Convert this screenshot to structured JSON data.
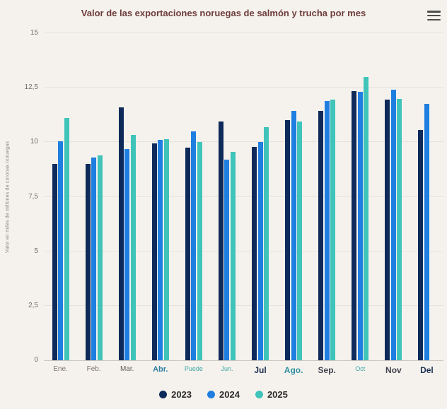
{
  "chart_data": {
    "type": "bar",
    "title": "Valor de las exportaciones noruegas de salmón y trucha por mes",
    "categories": [
      "Ene.",
      "Feb.",
      "Mar.",
      "Abr.",
      "Puede",
      "Jun.",
      "Jul",
      "Ago.",
      "Sep.",
      "Oct",
      "Nov",
      "Del"
    ],
    "series": [
      {
        "name": "2023",
        "color": "#0e2a5a",
        "values": [
          9.0,
          9.0,
          11.6,
          9.95,
          9.75,
          10.95,
          9.8,
          11.0,
          11.45,
          12.35,
          11.95,
          10.55
        ]
      },
      {
        "name": "2024",
        "color": "#1f7fe0",
        "values": [
          10.05,
          9.3,
          9.7,
          10.1,
          10.5,
          9.2,
          10.0,
          11.45,
          11.9,
          12.3,
          12.4,
          11.75
        ]
      },
      {
        "name": "2025",
        "color": "#40c4ba",
        "values": [
          11.1,
          9.4,
          10.35,
          10.15,
          10.0,
          9.55,
          10.7,
          10.95,
          11.95,
          13.0,
          12.0,
          null
        ]
      }
    ],
    "xlabel": "",
    "ylabel": "Valor en miles de millones de coronas noruegas",
    "ylim": [
      0,
      15
    ],
    "y_ticks": [
      {
        "label": "0",
        "value": 0
      },
      {
        "label": "2,5",
        "value": 2.5
      },
      {
        "label": "5",
        "value": 5
      },
      {
        "label": "7,5",
        "value": 7.5
      },
      {
        "label": "10",
        "value": 10
      },
      {
        "label": "12,5",
        "value": 12.5
      },
      {
        "label": "15",
        "value": 15
      }
    ],
    "grid": true,
    "legend_position": "bottom"
  },
  "x_axis": {
    "label_styles": [
      {
        "color": "#7d766e",
        "size": 10,
        "weight": 400
      },
      {
        "color": "#7d766e",
        "size": 10,
        "weight": 400
      },
      {
        "color": "#615b54",
        "size": 10,
        "weight": 400
      },
      {
        "color": "#2f7fa0",
        "size": 11,
        "weight": 600
      },
      {
        "color": "#39a5a5",
        "size": 9,
        "weight": 400
      },
      {
        "color": "#39a5a5",
        "size": 9,
        "weight": 400
      },
      {
        "color": "#1d3050",
        "size": 12,
        "weight": 600
      },
      {
        "color": "#2f8fa0",
        "size": 12,
        "weight": 600
      },
      {
        "color": "#41424e",
        "size": 12,
        "weight": 600
      },
      {
        "color": "#39a5a5",
        "size": 9,
        "weight": 400
      },
      {
        "color": "#41424e",
        "size": 12,
        "weight": 600
      },
      {
        "color": "#1d3050",
        "size": 12,
        "weight": 600
      }
    ]
  },
  "menu": {
    "icon": "hamburger-menu-icon"
  },
  "colors": {
    "background": "#f5f2ed",
    "title": "#6d3b3b",
    "grid": "#e7e3dc",
    "axis_line": "#ccc8c0",
    "y_label": "#6f6f6f",
    "legend_text": "#2b2b2b"
  }
}
